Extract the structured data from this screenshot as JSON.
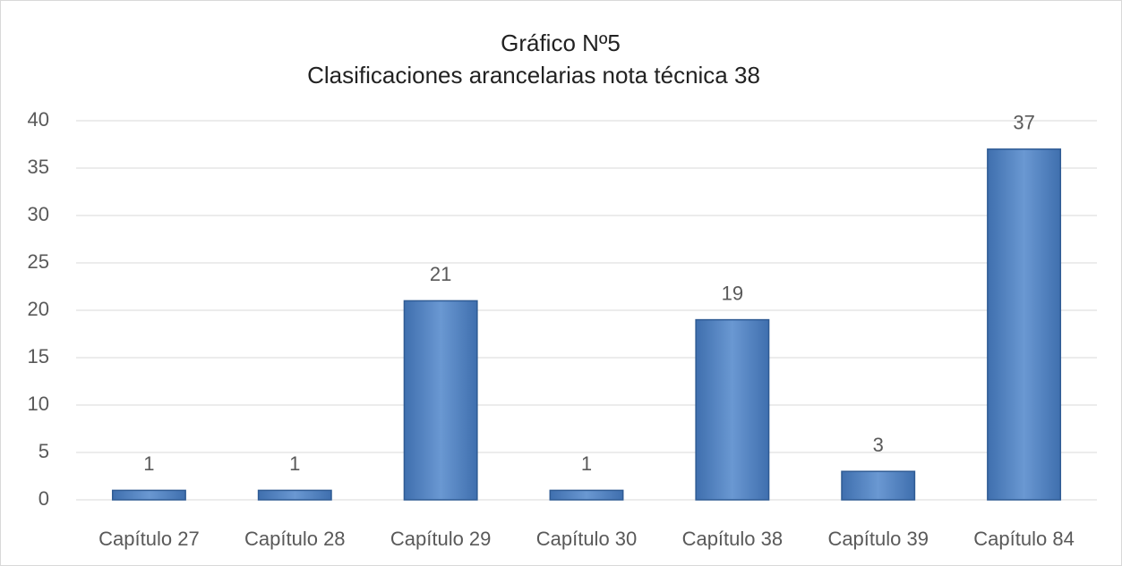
{
  "chart_data": {
    "type": "bar",
    "title": "Gráfico Nº5",
    "subtitle": "Clasificaciones arancelarias nota técnica 38",
    "categories": [
      "Capítulo 27",
      "Capítulo 28",
      "Capítulo 29",
      "Capítulo 30",
      "Capítulo 38",
      "Capítulo 39",
      "Capítulo 84"
    ],
    "values": [
      1,
      1,
      21,
      1,
      19,
      3,
      37
    ],
    "color": "#4a7ec0",
    "ylim": [
      0,
      40
    ],
    "yticks": [
      0,
      5,
      10,
      15,
      20,
      25,
      30,
      35,
      40
    ],
    "grid": true
  }
}
